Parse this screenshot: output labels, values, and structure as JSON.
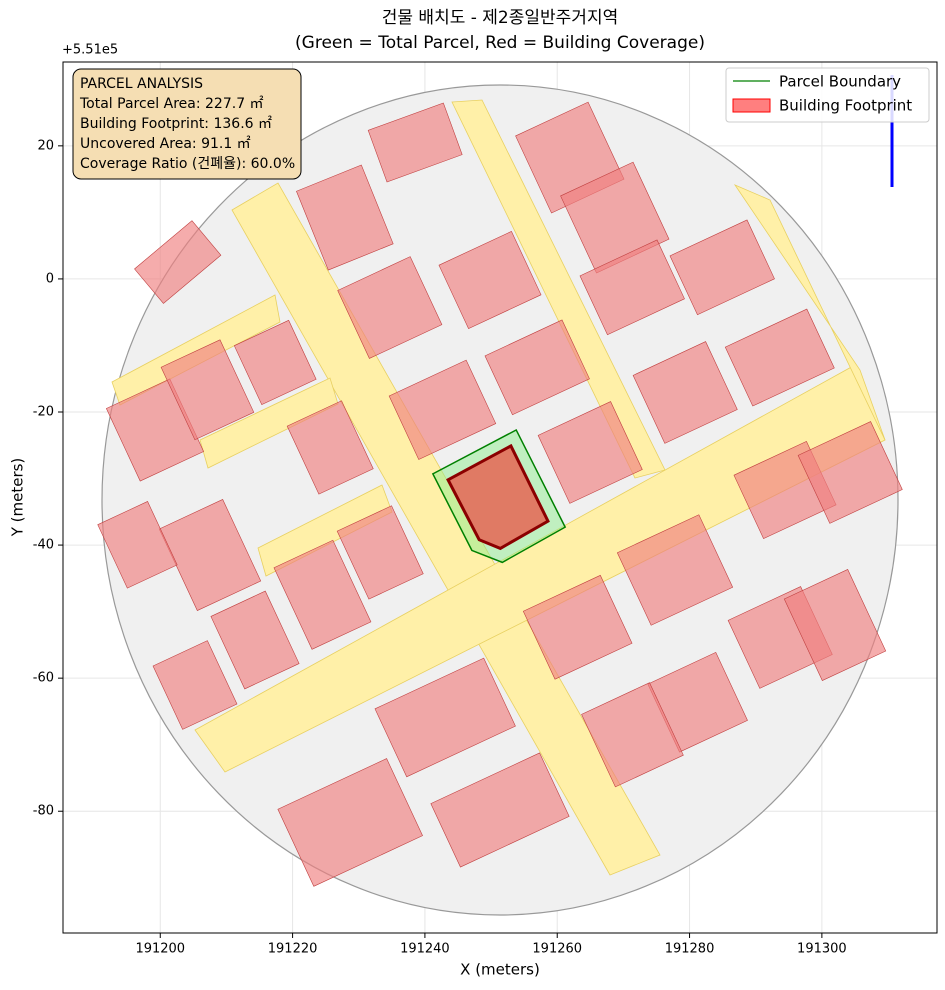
{
  "chart_data": {
    "type": "map",
    "title": "건물 배치도 - 제2종일반주거지역",
    "subtitle": "(Green = Total Parcel, Red = Building Coverage)",
    "x_label": "X (meters)",
    "y_label": "Y (meters)",
    "y_offset_label": "+5.51e5",
    "xlim": [
      191185.3,
      191317.4
    ],
    "ylim": [
      -98.3,
      32.6
    ],
    "xticks": [
      191200,
      191220,
      191240,
      191260,
      191280,
      191300
    ],
    "yticks": [
      20,
      0,
      -20,
      -40,
      -60,
      -80
    ],
    "grid": true,
    "legend": "upper right",
    "annotation": [
      "PARCEL ANALYSIS",
      "Total Parcel Area: 227.7 ㎡",
      "Building Footprint: 136.6 ㎡",
      "Uncovered Area: 91.1 ㎡",
      "Coverage Ratio (건폐율): 60.0%"
    ],
    "series": [
      {
        "name": "Parcel Boundary",
        "color": "#008000",
        "fill": "#90ee90",
        "x": [
          191241.2,
          191253.8,
          191261.2,
          191251.7,
          191247.1
        ],
        "y": [
          -29.3,
          -22.7,
          -37.3,
          -42.6,
          -40.8
        ]
      },
      {
        "name": "Building Footprint",
        "color": "#8b0000",
        "fill": "#e07a64",
        "x": [
          191243.5,
          191253.0,
          191258.6,
          191251.4,
          191248.2
        ],
        "y": [
          -30.2,
          -25.1,
          -36.4,
          -40.5,
          -39.2
        ]
      }
    ]
  }
}
